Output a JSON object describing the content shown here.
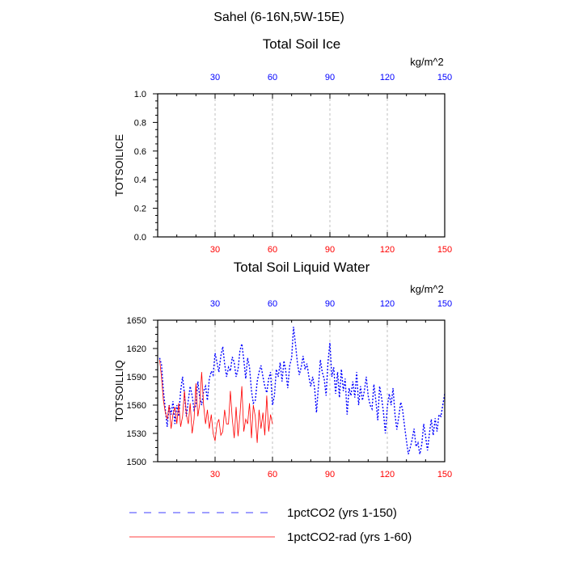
{
  "figure": {
    "title": "Sahel (6-16N,5W-15E)"
  },
  "chart_data": [
    {
      "type": "line",
      "title": "Total Soil Ice",
      "ylabel": "TOTSOILICE",
      "units_label": "kg/m^2",
      "xlim": [
        0,
        150
      ],
      "ylim": [
        0.0,
        1.0
      ],
      "x_ticks": [
        "30",
        "60",
        "90",
        "120",
        "150"
      ],
      "y_ticks": [
        "0.0",
        "0.2",
        "0.4",
        "0.6",
        "0.8",
        "1.0"
      ],
      "grid": "vertical dashed at x ticks",
      "series": []
    },
    {
      "type": "line",
      "title": "Total Soil Liquid Water",
      "ylabel": "TOTSOILLIQ",
      "units_label": "kg/m^2",
      "xlim": [
        0,
        150
      ],
      "ylim": [
        1500,
        1650
      ],
      "x_ticks": [
        "30",
        "60",
        "90",
        "120",
        "150"
      ],
      "y_ticks": [
        "1500",
        "1530",
        "1560",
        "1590",
        "1620",
        "1650"
      ],
      "grid": "vertical dashed at x ticks",
      "series": [
        {
          "name": "1pctCO2 (yrs 1-150)",
          "color": "#0000ff",
          "dash": "dotted",
          "values": [
            1610,
            1603,
            1575,
            1555,
            1537,
            1560,
            1550,
            1564,
            1540,
            1560,
            1548,
            1575,
            1590,
            1572,
            1548,
            1565,
            1580,
            1570,
            1555,
            1560,
            1585,
            1568,
            1560,
            1575,
            1580,
            1565,
            1588,
            1596,
            1592,
            1615,
            1605,
            1595,
            1612,
            1622,
            1604,
            1590,
            1600,
            1596,
            1611,
            1605,
            1590,
            1598,
            1618,
            1625,
            1608,
            1588,
            1610,
            1600,
            1575,
            1562,
            1565,
            1585,
            1595,
            1602,
            1590,
            1580,
            1573,
            1588,
            1595,
            1560,
            1570,
            1598,
            1590,
            1605,
            1585,
            1607,
            1595,
            1578,
            1602,
            1610,
            1643,
            1625,
            1605,
            1592,
            1600,
            1612,
            1598,
            1604,
            1590,
            1580,
            1590,
            1578,
            1552,
            1580,
            1608,
            1595,
            1588,
            1570,
            1605,
            1626,
            1590,
            1600,
            1572,
            1595,
            1568,
            1598,
            1575,
            1588,
            1550,
            1578,
            1570,
            1585,
            1568,
            1595,
            1560,
            1580,
            1565,
            1575,
            1590,
            1570,
            1560,
            1556,
            1582,
            1565,
            1544,
            1580,
            1568,
            1552,
            1530,
            1558,
            1572,
            1560,
            1578,
            1550,
            1534,
            1548,
            1563,
            1555,
            1538,
            1522,
            1508,
            1515,
            1524,
            1535,
            1516,
            1520,
            1508,
            1518,
            1540,
            1527,
            1512,
            1530,
            1545,
            1528,
            1546,
            1532,
            1550,
            1548,
            1560,
            1572
          ]
        },
        {
          "name": "1pctCO2-rad (yrs 1-60)",
          "color": "#ff0000",
          "dash": "solid",
          "values": [
            1608,
            1590,
            1565,
            1552,
            1545,
            1560,
            1535,
            1550,
            1558,
            1540,
            1562,
            1537,
            1548,
            1575,
            1550,
            1540,
            1562,
            1530,
            1545,
            1583,
            1548,
            1562,
            1595,
            1560,
            1540,
            1555,
            1535,
            1550,
            1530,
            1522,
            1540,
            1545,
            1528,
            1532,
            1555,
            1540,
            1540,
            1575,
            1545,
            1525,
            1558,
            1527,
            1550,
            1580,
            1532,
            1545,
            1540,
            1562,
            1525,
            1560,
            1548,
            1520,
            1555,
            1535,
            1552,
            1528,
            1570,
            1532,
            1550,
            1540
          ]
        }
      ]
    }
  ]
}
